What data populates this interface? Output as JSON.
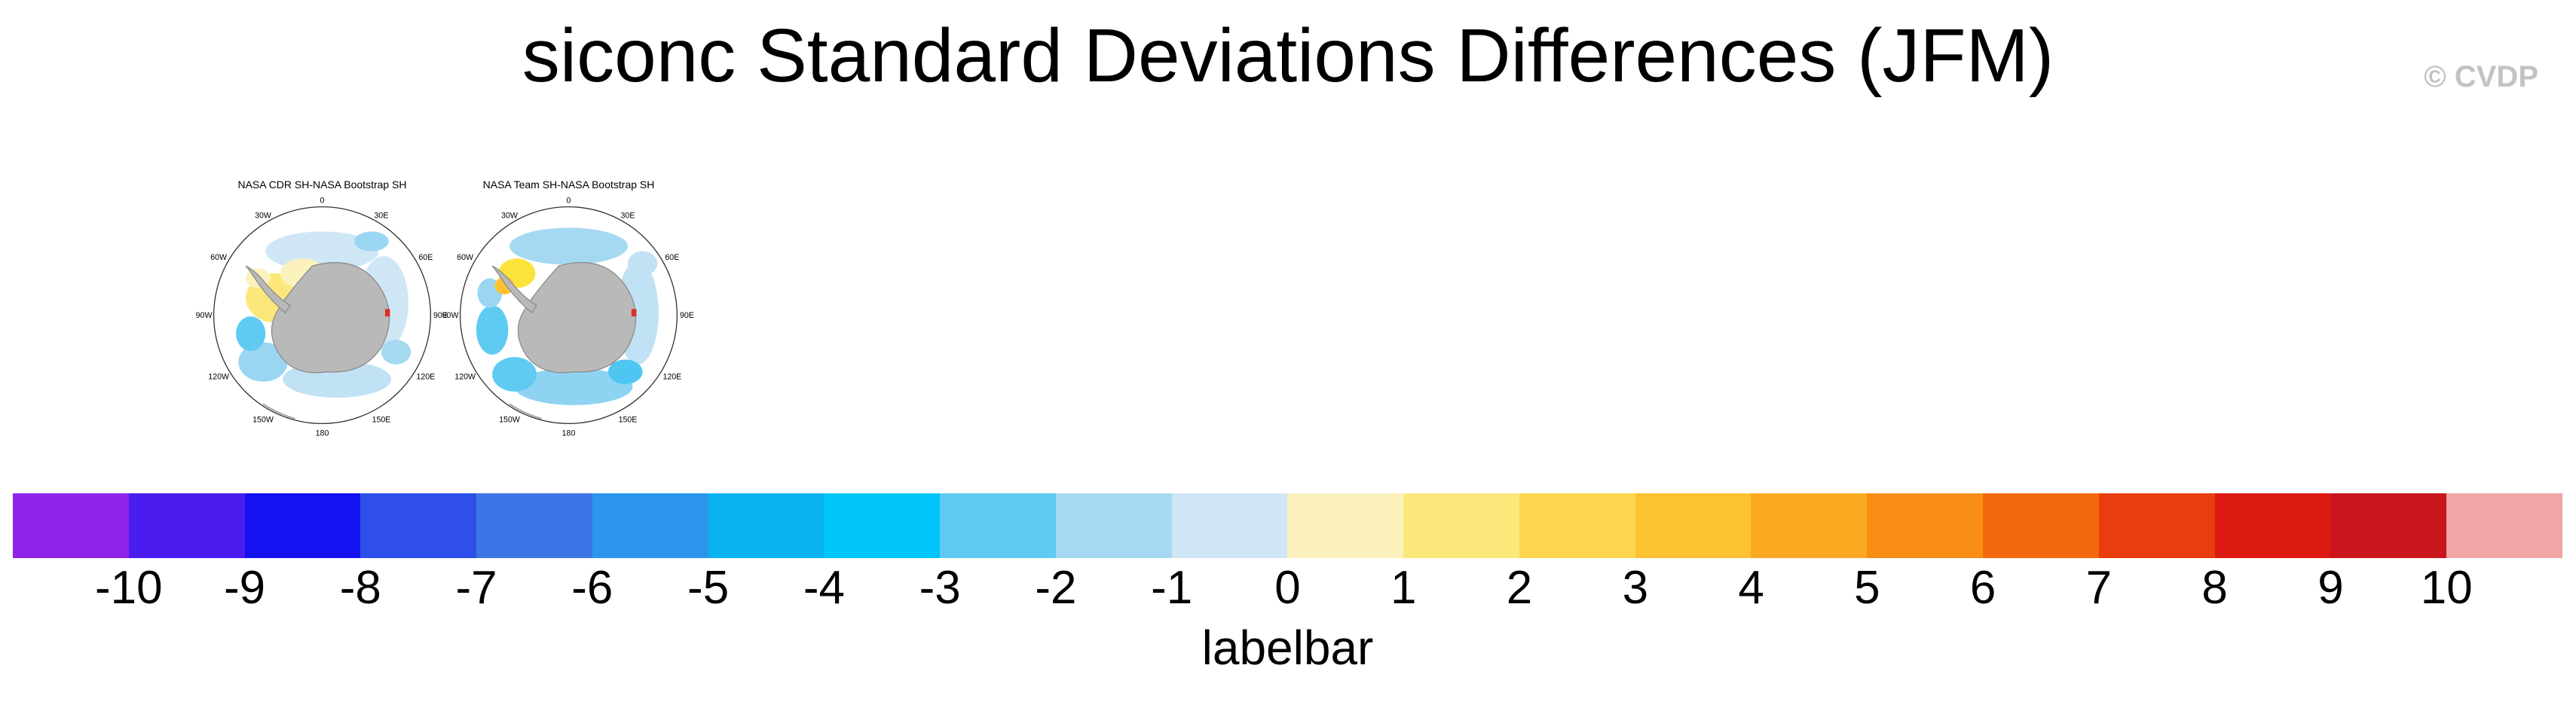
{
  "watermark": "© CVDP",
  "chart_data": {
    "type": "heatmap",
    "title": "siconc Standard Deviations Differences (JFM)",
    "projection": "south-polar-stereographic",
    "legend_position": "bottom",
    "panels": [
      {
        "title": "NASA CDR SH-NASA Bootstrap SH",
        "lon_labels": [
          "0",
          "30E",
          "60E",
          "90E",
          "120E",
          "150E",
          "180",
          "150W",
          "120W",
          "90W",
          "60W",
          "30W"
        ]
      },
      {
        "title": "NASA Team SH-NASA Bootstrap SH",
        "lon_labels": [
          "0",
          "30E",
          "60E",
          "90E",
          "120E",
          "150E",
          "180",
          "150W",
          "120W",
          "90W",
          "60W",
          "30W"
        ]
      }
    ],
    "colorbar": {
      "label": "labelbar",
      "tick_labels": [
        "-10",
        "-9",
        "-8",
        "-7",
        "-6",
        "-5",
        "-4",
        "-3",
        "-2",
        "-1",
        "0",
        "1",
        "2",
        "3",
        "4",
        "5",
        "6",
        "7",
        "8",
        "9",
        "10"
      ],
      "tick_min": -10,
      "tick_max": 10,
      "colors": [
        "#8F23E8",
        "#4B1CF0",
        "#1512F2",
        "#2E4FEA",
        "#3B75E6",
        "#2B96EC",
        "#0AB2F2",
        "#00C5FA",
        "#5FCBF2",
        "#A5D9F2",
        "#CFE7F5",
        "#FBF2BE",
        "#FCE77A",
        "#FDD650",
        "#FDC231",
        "#FCA922",
        "#F98E14",
        "#F3680D",
        "#E83D0E",
        "#DD1A12",
        "#C8161C",
        "#F2A5A5"
      ]
    }
  }
}
